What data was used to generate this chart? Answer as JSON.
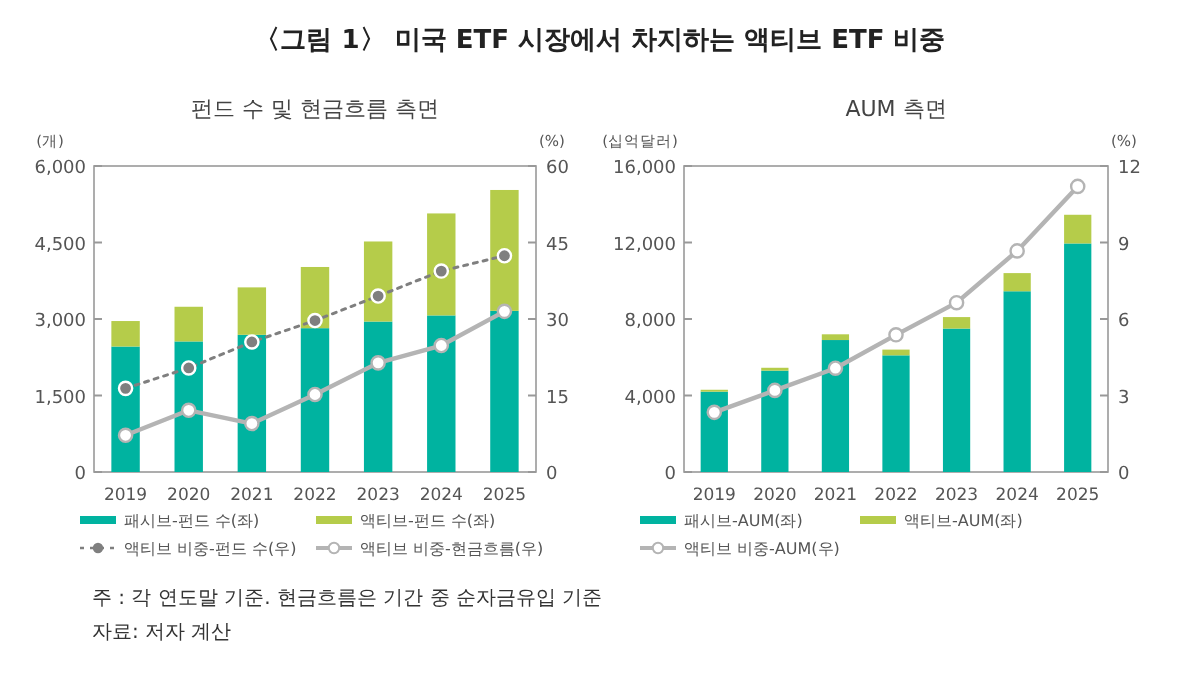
{
  "chart_data": [
    {
      "type": "bar",
      "title": "〈그림 1〉 미국 ETF 시장에서 차지하는 액티브 ETF 비중",
      "subtitle": "펀드 수 및 현금흐름 측면",
      "ylabel": "(개)",
      "y2label": "(%)",
      "categories": [
        "2019",
        "2020",
        "2021",
        "2022",
        "2023",
        "2024",
        "2025"
      ],
      "stacked": true,
      "legend": "bottom",
      "grid": false,
      "ylim": [
        0,
        6000
      ],
      "yticks": [
        0,
        {
          "value": 1500,
          "label": "1,500"
        },
        {
          "value": 3000,
          "label": "3,000"
        },
        {
          "value": 4500,
          "label": "4,500"
        },
        {
          "value": 6000,
          "label": "6,000"
        }
      ],
      "y2lim": [
        0,
        60
      ],
      "y2ticks": [
        0,
        15,
        30,
        45,
        60
      ],
      "series": [
        {
          "name": "패시브-펀드 수(좌)",
          "color": "#00b3a0",
          "values": [
            2460,
            2560,
            2690,
            2820,
            2950,
            3070,
            3160
          ]
        },
        {
          "name": "액티브-펀드 수(좌)",
          "color": "#b5cc4a",
          "values": [
            500,
            680,
            930,
            1200,
            1570,
            2000,
            2370
          ]
        },
        {
          "name": "액티브 비중-펀드 수(우)",
          "type": "line",
          "axis": "y2",
          "color": "#7f7f7f",
          "marker": "circle",
          "line_style": "dotted",
          "values": [
            16.4,
            20.4,
            25.5,
            29.7,
            34.5,
            39.4,
            42.4
          ]
        },
        {
          "name": "액티브 비중-현금흐름(우)",
          "type": "line",
          "axis": "y2",
          "color": "#b4b4b4",
          "marker": "circle",
          "line_style": "solid",
          "values": [
            7.2,
            12.1,
            9.5,
            15.2,
            21.4,
            24.8,
            31.5
          ]
        }
      ],
      "annotations": [
        "주 : 각 연도말 기준. 현금흐름은 기간 중 순자금유입 기준",
        "자료: 저자 계산"
      ]
    },
    {
      "type": "bar",
      "title": "AUM 측면",
      "ylabel": "(십억달러)",
      "y2label": "(%)",
      "categories": [
        "2019",
        "2020",
        "2021",
        "2022",
        "2023",
        "2024",
        "2025"
      ],
      "stacked": true,
      "legend": "bottom",
      "grid": false,
      "ylim": [
        0,
        16000
      ],
      "yticks": [
        0,
        {
          "value": 4000,
          "label": "4,000"
        },
        {
          "value": 8000,
          "label": "8,000"
        },
        {
          "value": 12000,
          "label": "12,000"
        },
        {
          "value": 16000,
          "label": "16,000"
        }
      ],
      "y2lim": [
        0,
        12
      ],
      "y2ticks": [
        0,
        3,
        6,
        9,
        12
      ],
      "series": [
        {
          "name": "패시브-AUM(좌)",
          "color": "#00b3a0",
          "values": [
            4200,
            5300,
            6900,
            6100,
            7500,
            9450,
            11950
          ]
        },
        {
          "name": "액티브-AUM(좌)",
          "color": "#b5cc4a",
          "values": [
            100,
            150,
            300,
            300,
            600,
            950,
            1500
          ]
        },
        {
          "name": "액티브 비중-AUM(우)",
          "type": "line",
          "axis": "y2",
          "color": "#b4b4b4",
          "marker": "circle",
          "line_style": "solid",
          "values": [
            2.34,
            3.2,
            4.07,
            5.38,
            6.64,
            8.67,
            11.2
          ]
        }
      ]
    }
  ]
}
